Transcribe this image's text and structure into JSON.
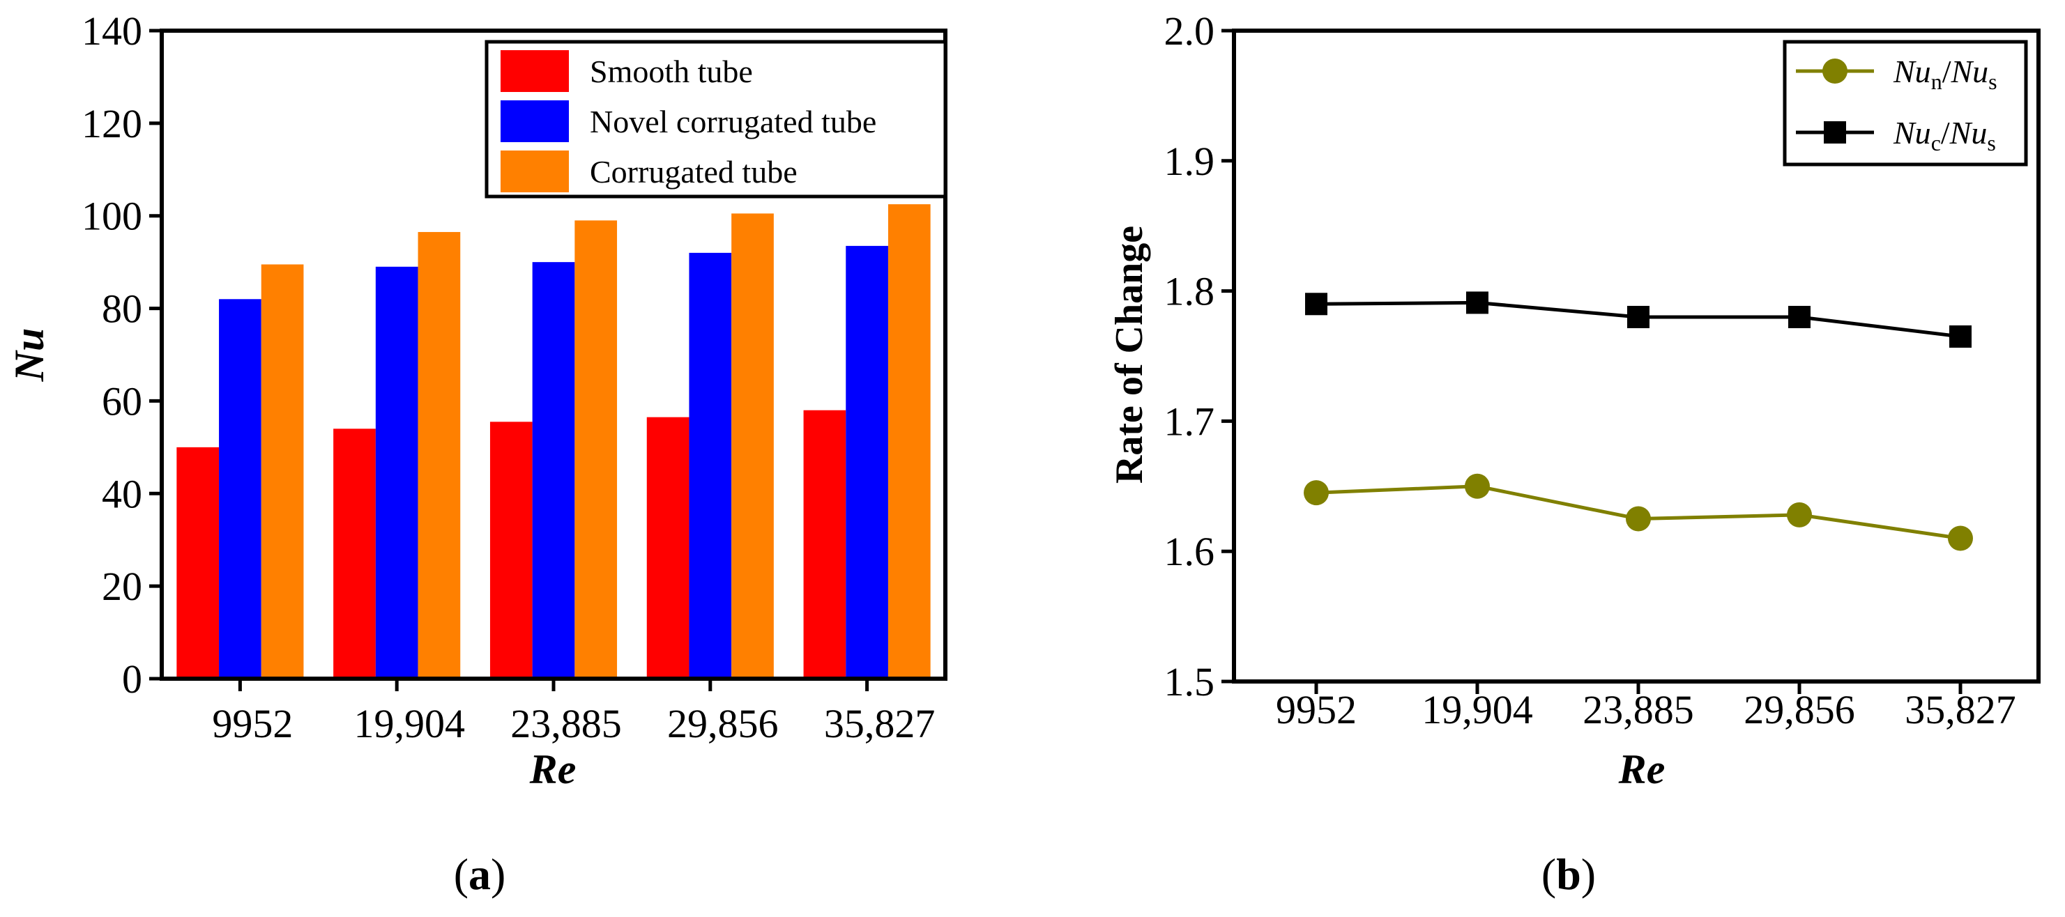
{
  "colors": {
    "smooth": "#ff0000",
    "novel": "#0000ff",
    "corrugated": "#ff8000",
    "ratio_n": "#808000",
    "ratio_c": "#000000"
  },
  "chart_data": [
    {
      "panel": "a",
      "panel_label": {
        "open": "(",
        "letter": "a",
        "close": ")"
      },
      "type": "bar",
      "title": "",
      "xlabel": "Re",
      "ylabel": "Nu",
      "categories": [
        "9952",
        "19,904",
        "23,885",
        "29,856",
        "35,827"
      ],
      "ylim": [
        0,
        140
      ],
      "yticks": [
        "0",
        "20",
        "40",
        "60",
        "80",
        "100",
        "120",
        "140"
      ],
      "legend_position": "top-right",
      "series": [
        {
          "name": "Smooth tube",
          "values": [
            50,
            54,
            55.5,
            56.5,
            58
          ]
        },
        {
          "name": "Novel corrugated tube",
          "values": [
            82,
            89,
            90,
            92,
            93.5
          ]
        },
        {
          "name": "Corrugated tube",
          "values": [
            89.5,
            96.5,
            99,
            100.5,
            102.5
          ]
        }
      ]
    },
    {
      "panel": "b",
      "panel_label": {
        "open": "(",
        "letter": "b",
        "close": ")"
      },
      "type": "line",
      "title": "",
      "xlabel": "Re",
      "ylabel": "Rate of Change",
      "categories": [
        "9952",
        "19,904",
        "23,885",
        "29,856",
        "35,827"
      ],
      "ylim": [
        1.5,
        2.0
      ],
      "yticks": [
        "1.5",
        "1.6",
        "1.7",
        "1.8",
        "1.9",
        "2.0"
      ],
      "legend_position": "top-right",
      "series": [
        {
          "name": "Nun/Nus",
          "label_parts": {
            "a": "Nu",
            "a_sub": "n",
            "b": "Nu",
            "b_sub": "s"
          },
          "marker": "circle",
          "values": [
            1.645,
            1.65,
            1.625,
            1.628,
            1.61
          ]
        },
        {
          "name": "Nuc/Nus",
          "label_parts": {
            "a": "Nu",
            "a_sub": "c",
            "b": "Nu",
            "b_sub": "s"
          },
          "marker": "square",
          "values": [
            1.79,
            1.791,
            1.78,
            1.78,
            1.765
          ]
        }
      ]
    }
  ]
}
